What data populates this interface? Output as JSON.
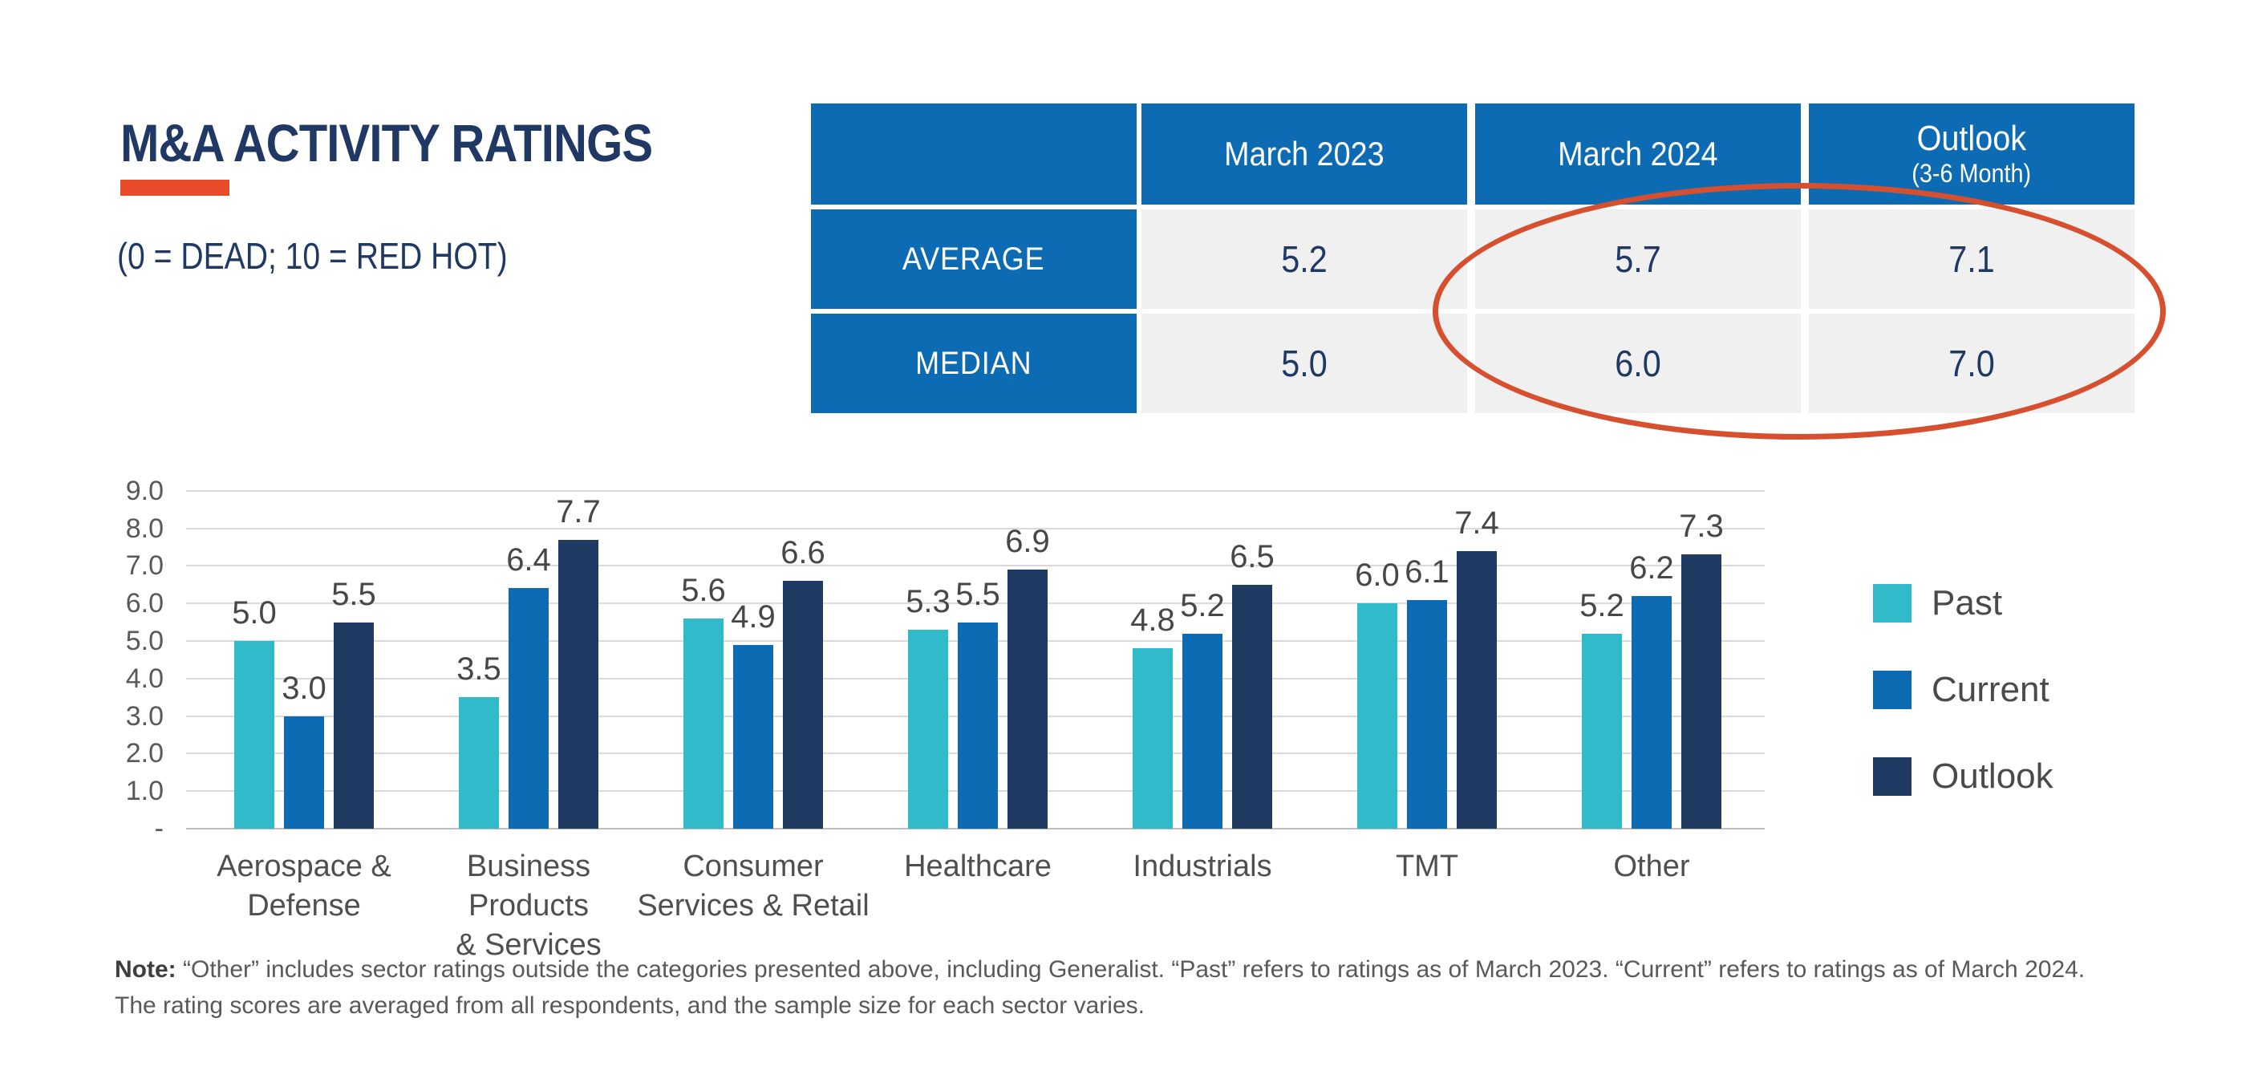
{
  "header": {
    "title": "M&A ACTIVITY RATINGS",
    "subtitle": "(0 = DEAD; 10 = RED HOT)"
  },
  "summary_table": {
    "columns": [
      "",
      "March 2023",
      "March 2024",
      "Outlook"
    ],
    "outlook_subnote": "(3-6 Month)",
    "rows": [
      {
        "label": "AVERAGE",
        "values": [
          "5.2",
          "5.7",
          "7.1"
        ]
      },
      {
        "label": "MEDIAN",
        "values": [
          "5.0",
          "6.0",
          "7.0"
        ]
      }
    ],
    "header_bg_color": "#0C6BB2",
    "value_bg_color": "#F0F0F0",
    "value_text_color": "#1F3864",
    "highlight_ellipse_color": "#D6502F"
  },
  "chart_data": {
    "type": "bar",
    "categories": [
      "Aerospace & Defense",
      "Business Products & Services",
      "Consumer Services & Retail",
      "Healthcare",
      "Industrials",
      "TMT",
      "Other"
    ],
    "category_lines": [
      [
        "Aerospace &",
        "Defense"
      ],
      [
        "Business Products",
        "& Services"
      ],
      [
        "Consumer",
        "Services & Retail"
      ],
      [
        "Healthcare"
      ],
      [
        "Industrials"
      ],
      [
        "TMT"
      ],
      [
        "Other"
      ]
    ],
    "series": [
      {
        "name": "Past",
        "color": "#31BAC9",
        "values": [
          5.0,
          3.5,
          5.6,
          5.3,
          4.8,
          6.0,
          5.2
        ]
      },
      {
        "name": "Current",
        "color": "#0C6BB2",
        "values": [
          3.0,
          6.4,
          4.9,
          5.5,
          5.2,
          6.1,
          6.2
        ]
      },
      {
        "name": "Outlook",
        "color": "#1F3A63",
        "values": [
          5.5,
          7.7,
          6.6,
          6.9,
          6.5,
          7.4,
          7.3
        ]
      }
    ],
    "y_ticks": [
      "9.0",
      "8.0",
      "7.0",
      "6.0",
      "5.0",
      "4.0",
      "3.0",
      "2.0",
      "1.0",
      "-"
    ],
    "ylim": [
      0,
      9
    ],
    "grid": true,
    "legend_position": "right",
    "title": "",
    "xlabel": "",
    "ylabel": ""
  },
  "note": {
    "label": "Note:",
    "line1": "“Other” includes sector ratings outside the categories presented above, including Generalist. “Past” refers to ratings as of March 2023. “Current” refers to ratings as of March 2024.",
    "line2": "The rating scores are averaged from all respondents, and the sample size for each sector varies."
  },
  "colors": {
    "title_navy": "#1F3864",
    "accent_red": "#E84C2B",
    "gridline": "#DADADA",
    "axis_line": "#BDBDBD"
  }
}
